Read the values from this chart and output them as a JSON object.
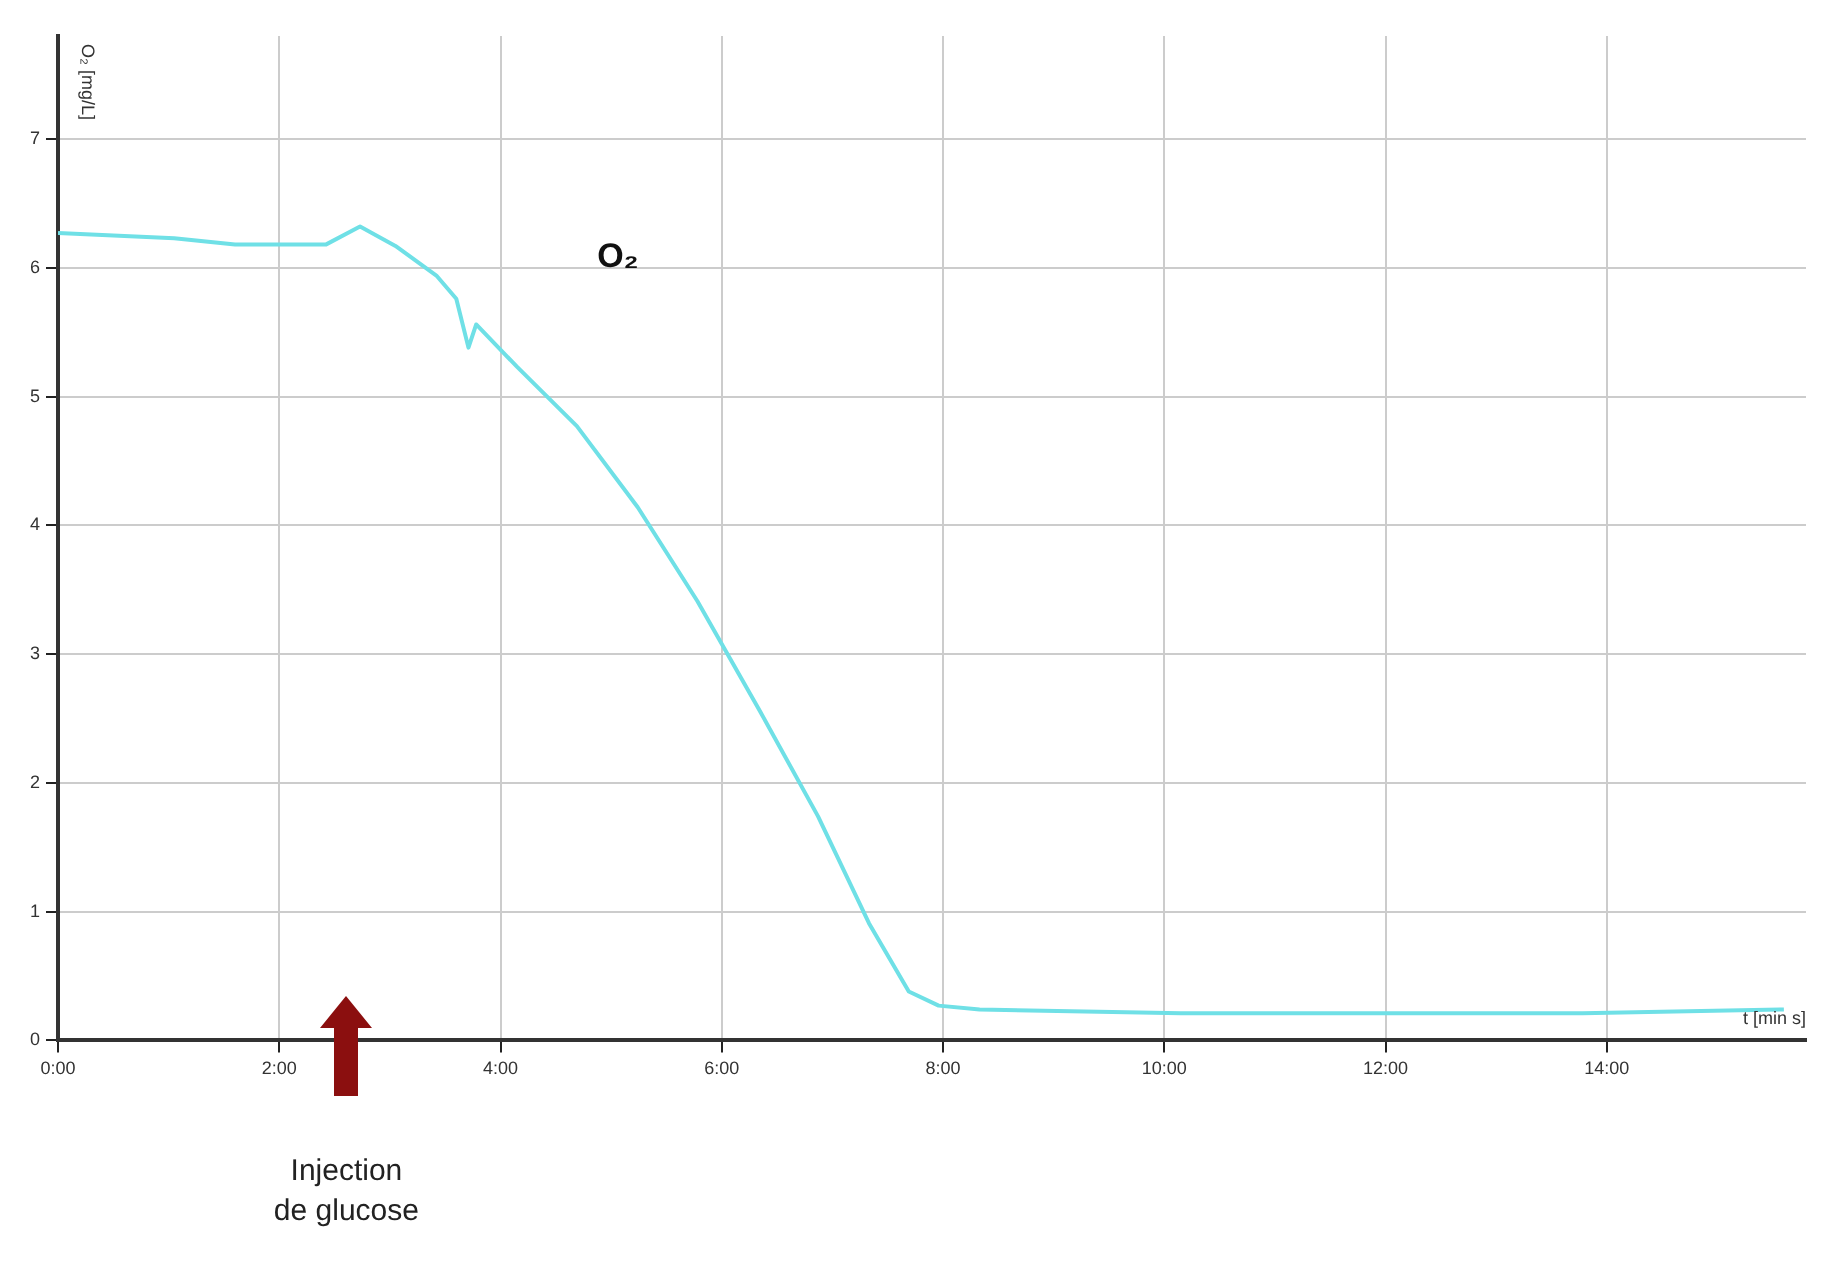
{
  "chart_data": {
    "type": "line",
    "ylabel": "O₂ [mg/L]",
    "xlabel": "t [min s]",
    "x": [
      0,
      1.05,
      1.6,
      2.42,
      2.73,
      3.05,
      3.42,
      3.6,
      3.71,
      3.78,
      4.15,
      4.69,
      5.24,
      5.78,
      6.33,
      6.87,
      7.33,
      7.69,
      7.96,
      8.33,
      10.15,
      11.96,
      13.78,
      15.6
    ],
    "series": [
      {
        "name": "O₂",
        "color": "#6fe0e6",
        "values": [
          6.27,
          6.23,
          6.18,
          6.18,
          6.32,
          6.17,
          5.94,
          5.76,
          5.38,
          5.56,
          5.23,
          4.77,
          4.14,
          3.41,
          2.58,
          1.74,
          0.91,
          0.38,
          0.27,
          0.24,
          0.21,
          0.21,
          0.21,
          0.24
        ]
      }
    ],
    "xlim": [
      0,
      15.8
    ],
    "ylim": [
      0,
      7.8
    ],
    "xticks": [
      {
        "value": 0,
        "label": "0:00"
      },
      {
        "value": 2,
        "label": "2:00"
      },
      {
        "value": 4,
        "label": "4:00"
      },
      {
        "value": 6,
        "label": "6:00"
      },
      {
        "value": 8,
        "label": "8:00"
      },
      {
        "value": 10,
        "label": "10:00"
      },
      {
        "value": 12,
        "label": "12:00"
      },
      {
        "value": 14,
        "label": "14:00"
      }
    ],
    "yticks": [
      0,
      1,
      2,
      3,
      4,
      5,
      6,
      7
    ],
    "grid": true,
    "legend": false,
    "marker": "none",
    "line_style": "solid",
    "annotations": [
      "Injection de glucose"
    ]
  }
}
